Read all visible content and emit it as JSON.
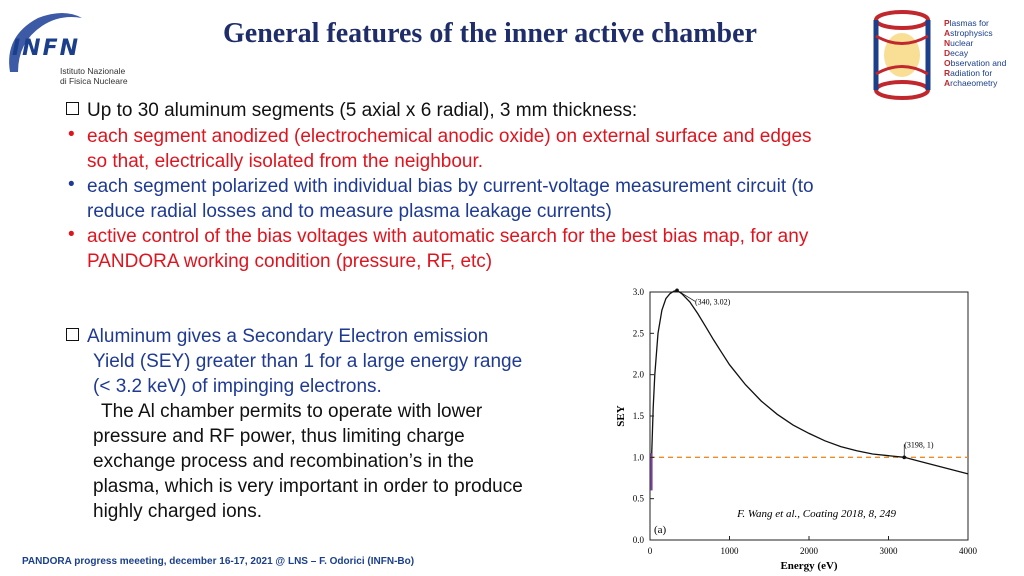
{
  "slide": {
    "title": "General features of the inner active chamber",
    "footer": "PANDORA progress meeeting, december 16-17, 2021 @ LNS – F. Odorici (INFN-Bo)"
  },
  "logos": {
    "infn_name": "INFN",
    "infn_line1": "Istituto Nazionale",
    "infn_line2": "di Fisica Nucleare",
    "pandora_lines": [
      {
        "cap": "P",
        "rest": "lasmas for"
      },
      {
        "cap": "A",
        "rest": "strophysics"
      },
      {
        "cap": "N",
        "rest": "uclear"
      },
      {
        "cap": "D",
        "rest": "ecay"
      },
      {
        "cap": "O",
        "rest": "bservation and"
      },
      {
        "cap": "R",
        "rest": "adiation for"
      },
      {
        "cap": "A",
        "rest": "rchaeometry"
      }
    ]
  },
  "section1": {
    "heading": "Up to 30 aluminum segments (5 axial x 6 radial), 3 mm thickness:",
    "bullets": [
      {
        "color": "#e0141e",
        "line1": "each segment anodized (electrochemical anodic oxide) on external surface and edges",
        "line2": "so that, electrically isolated from the neighbour."
      },
      {
        "color": "#1f3a93",
        "line1": "each segment polarized with individual bias by current-voltage measurement circuit (to",
        "line2": "reduce radial losses and to measure plasma leakage currents)"
      },
      {
        "color": "#e0141e",
        "line1": "active control of the bias voltages with automatic search for the best bias map, for any",
        "line2": "PANDORA working condition (pressure, RF, etc)"
      }
    ]
  },
  "section2": {
    "line1": "Aluminum gives a Secondary Electron emission",
    "line2": "Yield (SEY) greater than 1 for a large energy range",
    "line3": "(< 3.2 keV) of impinging electrons.",
    "line4": "The Al chamber permits to operate with lower",
    "line5": "pressure and RF power, thus limiting charge",
    "line6": "exchange process and recombination’s in the",
    "line7": "plasma, which is very important in order to produce",
    "line8": "highly charged ions."
  },
  "chart_data": {
    "type": "line",
    "xlabel": "Energy (eV)",
    "ylabel": "SEY",
    "xlim": [
      0,
      4000
    ],
    "ylim": [
      0,
      3.0
    ],
    "xticks": [
      "0",
      "1000",
      "2000",
      "3000",
      "4000"
    ],
    "yticks": [
      "0.0",
      "0.5",
      "1.0",
      "1.5",
      "2.0",
      "2.5",
      "3.0"
    ],
    "panel_label": "(a)",
    "citation": "F. Wang et al., Coating 2018, 8, 249",
    "annotations": [
      {
        "text": "(340, 3.02)",
        "x": 340,
        "y": 3.02
      },
      {
        "text": "(3198, 1)",
        "x": 3198,
        "y": 1.0
      }
    ],
    "reference_line": {
      "y": 1.0,
      "color": "#f08a24"
    },
    "series": [
      {
        "color": "#111111",
        "x": [
          20,
          40,
          60,
          100,
          150,
          200,
          250,
          300,
          340,
          400,
          500,
          600,
          700,
          800,
          900,
          1000,
          1200,
          1400,
          1600,
          1800,
          2000,
          2200,
          2400,
          2600,
          2800,
          3000,
          3198,
          3400,
          3600,
          3800,
          4000
        ],
        "y": [
          1.0,
          1.6,
          2.0,
          2.5,
          2.78,
          2.92,
          2.98,
          3.01,
          3.02,
          2.98,
          2.88,
          2.74,
          2.58,
          2.42,
          2.27,
          2.12,
          1.88,
          1.68,
          1.52,
          1.39,
          1.29,
          1.2,
          1.13,
          1.08,
          1.04,
          1.02,
          1.0,
          0.95,
          0.9,
          0.85,
          0.8
        ]
      }
    ]
  }
}
